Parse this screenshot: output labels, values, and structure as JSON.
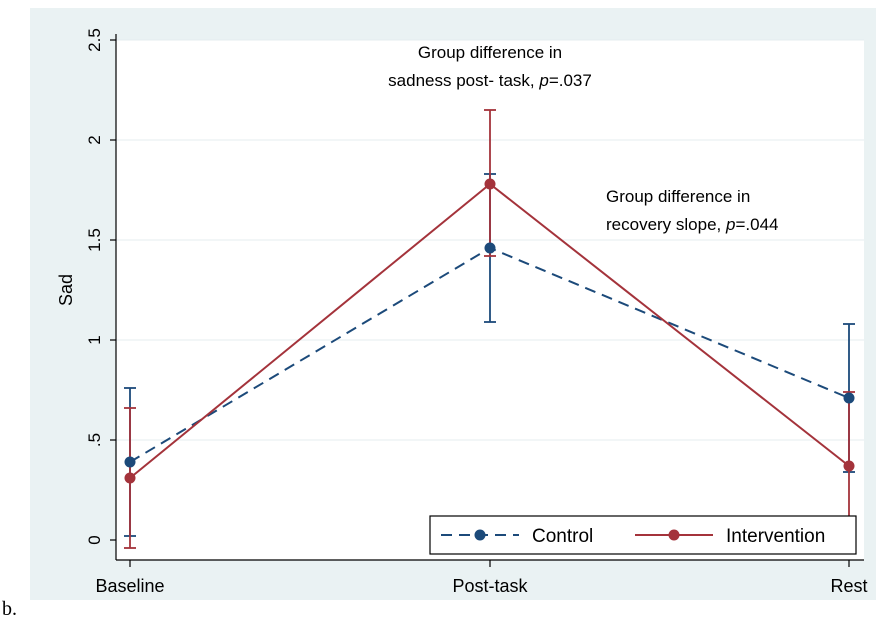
{
  "panel_label": "b.",
  "chart_data": {
    "type": "line",
    "title": "",
    "xlabel": "",
    "ylabel": "Sad",
    "categories": [
      "Baseline",
      "Post-task",
      "Rest"
    ],
    "ylim": [
      0,
      2.5
    ],
    "yticks": [
      0,
      0.5,
      1,
      1.5,
      2,
      2.5
    ],
    "ytick_labels": [
      "0",
      ".5",
      "1",
      "1.5",
      "2",
      "2.5"
    ],
    "grid": true,
    "legend_position": "bottom-right",
    "series": [
      {
        "name": "Control",
        "values": [
          0.39,
          1.46,
          0.71
        ],
        "ci_lower": [
          0.02,
          1.09,
          0.34
        ],
        "ci_upper": [
          0.76,
          1.83,
          1.08
        ],
        "color": "#1c4a7a",
        "line_style": "dashed"
      },
      {
        "name": "Intervention",
        "values": [
          0.31,
          1.78,
          0.37
        ],
        "ci_lower": [
          -0.04,
          1.42,
          0.0
        ],
        "ci_upper": [
          0.66,
          2.15,
          0.74
        ],
        "color": "#a4333b",
        "line_style": "solid"
      }
    ],
    "annotations": [
      {
        "lines": [
          "Group difference in",
          "sadness post- task, ",
          "p",
          "=.037"
        ],
        "near": "top-center"
      },
      {
        "lines": [
          "Group difference in",
          "recovery slope, ",
          "p",
          "=.044"
        ],
        "near": "right"
      }
    ],
    "colors": {
      "outer_background": "#eaf2f3",
      "plot_background": "#ffffff",
      "grid": "#e4ecef"
    }
  }
}
